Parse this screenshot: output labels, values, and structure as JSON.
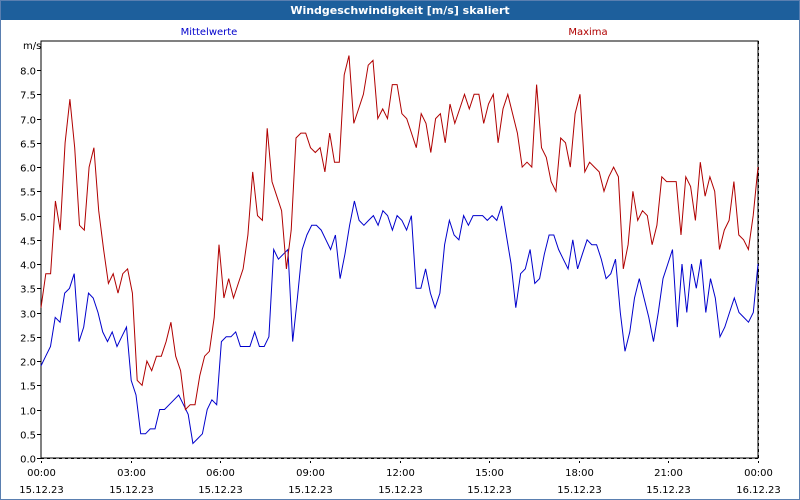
{
  "window": {
    "title": "Windgeschwindigkeit [m/s] skaliert"
  },
  "chart_data": {
    "type": "line",
    "title": "Windgeschwindigkeit [m/s] skaliert",
    "ylabel": "m/s",
    "ylim": [
      0,
      8.6
    ],
    "yticks": [
      "0.0",
      "0.5",
      "1.0",
      "1.5",
      "2.0",
      "2.5",
      "3.0",
      "3.5",
      "4.0",
      "4.5",
      "5.0",
      "5.5",
      "6.0",
      "6.5",
      "7.0",
      "7.5",
      "8.0"
    ],
    "xlim": [
      0,
      24
    ],
    "xticks": [
      {
        "time": "00:00",
        "date": "15.12.23",
        "h": 0
      },
      {
        "time": "03:00",
        "date": "15.12.23",
        "h": 3
      },
      {
        "time": "06:00",
        "date": "15.12.23",
        "h": 6
      },
      {
        "time": "09:00",
        "date": "15.12.23",
        "h": 9
      },
      {
        "time": "12:00",
        "date": "15.12.23",
        "h": 12
      },
      {
        "time": "15:00",
        "date": "15.12.23",
        "h": 15
      },
      {
        "time": "18:00",
        "date": "15.12.23",
        "h": 18
      },
      {
        "time": "21:00",
        "date": "15.12.23",
        "h": 21
      },
      {
        "time": "00:00",
        "date": "16.12.23",
        "h": 24
      }
    ],
    "grid": true,
    "series": [
      {
        "name": "Mittelwerte",
        "color": "#0000cc",
        "values": [
          1.9,
          2.1,
          2.3,
          2.9,
          2.8,
          3.4,
          3.5,
          3.8,
          2.4,
          2.7,
          3.4,
          3.3,
          3.0,
          2.6,
          2.4,
          2.6,
          2.3,
          2.5,
          2.7,
          1.6,
          1.3,
          0.5,
          0.5,
          0.6,
          0.6,
          1.0,
          1.0,
          1.1,
          1.2,
          1.3,
          1.1,
          0.9,
          0.3,
          0.4,
          0.5,
          1.0,
          1.2,
          1.1,
          2.4,
          2.5,
          2.5,
          2.6,
          2.3,
          2.3,
          2.3,
          2.6,
          2.3,
          2.3,
          2.5,
          4.3,
          4.1,
          4.2,
          4.3,
          2.4,
          3.3,
          4.3,
          4.6,
          4.8,
          4.8,
          4.7,
          4.5,
          4.3,
          4.6,
          3.7,
          4.2,
          4.8,
          5.3,
          4.9,
          4.8,
          4.9,
          5.0,
          4.8,
          5.1,
          5.0,
          4.7,
          5.0,
          4.9,
          4.7,
          5.0,
          3.5,
          3.5,
          3.9,
          3.4,
          3.1,
          3.4,
          4.4,
          4.9,
          4.6,
          4.5,
          5.0,
          4.8,
          5.0,
          5.0,
          5.0,
          4.9,
          5.0,
          4.9,
          5.2,
          4.6,
          4.0,
          3.1,
          3.8,
          3.9,
          4.3,
          3.6,
          3.7,
          4.2,
          4.6,
          4.6,
          4.3,
          4.1,
          3.9,
          4.5,
          3.9,
          4.2,
          4.5,
          4.4,
          4.4,
          4.1,
          3.7,
          3.8,
          4.1,
          3.0,
          2.2,
          2.6,
          3.3,
          3.7,
          3.3,
          2.9,
          2.4,
          3.0,
          3.7,
          4.0,
          4.3,
          2.7,
          4.0,
          3.0,
          4.0,
          3.5,
          4.1,
          3.0,
          3.7,
          3.3,
          2.5,
          2.7,
          3.0,
          3.3,
          3.0,
          2.9,
          2.8,
          3.0,
          4.0
        ]
      },
      {
        "name": "Maxima",
        "color": "#b00000",
        "values": [
          3.1,
          3.8,
          3.8,
          5.3,
          4.7,
          6.5,
          7.4,
          6.4,
          4.8,
          4.7,
          6.0,
          6.4,
          5.1,
          4.3,
          3.6,
          3.8,
          3.4,
          3.8,
          3.9,
          3.4,
          1.6,
          1.5,
          2.0,
          1.8,
          2.1,
          2.1,
          2.4,
          2.8,
          2.1,
          1.8,
          1.0,
          1.1,
          1.1,
          1.7,
          2.1,
          2.2,
          2.9,
          4.4,
          3.3,
          3.7,
          3.3,
          3.6,
          3.9,
          4.6,
          5.9,
          5.0,
          4.9,
          6.8,
          5.7,
          5.4,
          5.1,
          3.9,
          4.7,
          6.6,
          6.7,
          6.7,
          6.4,
          6.3,
          6.4,
          5.9,
          6.7,
          6.1,
          6.1,
          7.9,
          8.3,
          6.9,
          7.2,
          7.5,
          8.1,
          8.2,
          7.0,
          7.2,
          7.0,
          7.7,
          7.7,
          7.1,
          7.0,
          6.7,
          6.4,
          7.1,
          6.9,
          6.3,
          7.0,
          7.1,
          6.5,
          7.3,
          6.9,
          7.2,
          7.5,
          7.2,
          7.5,
          7.5,
          6.9,
          7.3,
          7.5,
          6.5,
          7.2,
          7.5,
          7.1,
          6.7,
          6.0,
          6.1,
          6.0,
          7.7,
          6.4,
          6.2,
          5.7,
          5.5,
          6.6,
          6.5,
          6.0,
          7.1,
          7.5,
          5.9,
          6.1,
          6.0,
          5.9,
          5.5,
          5.8,
          6.0,
          5.8,
          3.9,
          4.4,
          5.5,
          4.9,
          5.1,
          5.0,
          4.4,
          4.8,
          5.8,
          5.7,
          5.7,
          5.7,
          4.6,
          5.8,
          5.6,
          4.9,
          6.1,
          5.4,
          5.8,
          5.5,
          4.3,
          4.7,
          4.9,
          5.7,
          4.6,
          4.5,
          4.3,
          5.0,
          6.0
        ]
      }
    ]
  }
}
